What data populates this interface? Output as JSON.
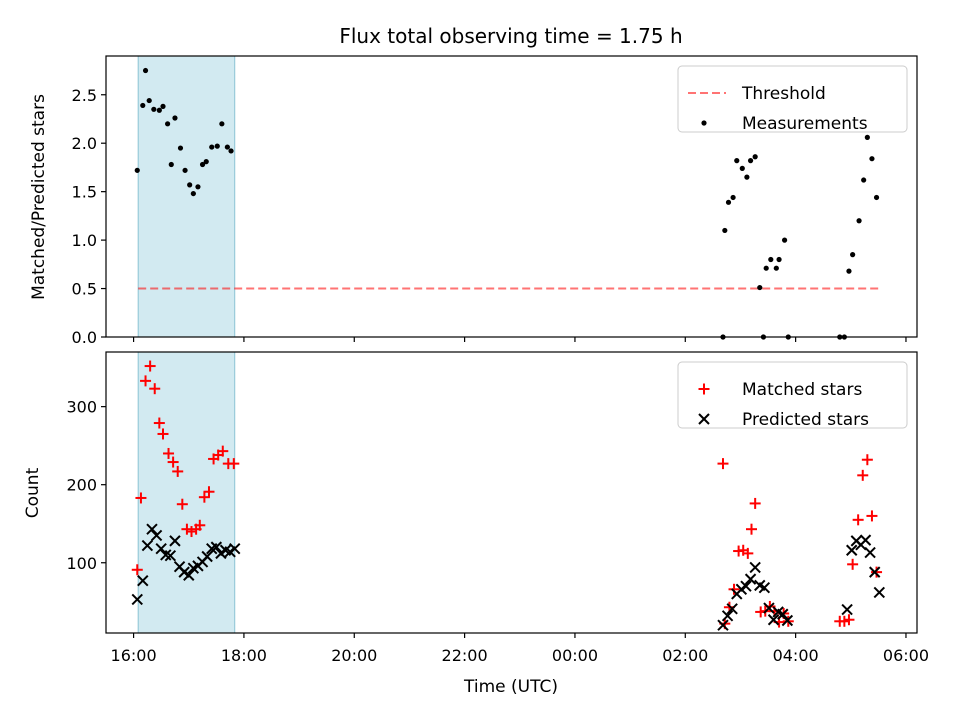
{
  "figure_title": "Flux total observing time = 1.75 h",
  "colors": {
    "highlight": "#add8e6",
    "threshold": "#ff0000",
    "measurements": "#000000",
    "matched": "#ff0000",
    "predicted": "#000000"
  },
  "chart_data": [
    {
      "type": "scatter",
      "ylabel": "Matched/Predicted stars",
      "ylim": [
        0,
        2.9
      ],
      "y_ticks": [
        "0.0",
        "0.5",
        "1.0",
        "1.5",
        "2.0",
        "2.5"
      ],
      "grid": false,
      "legend": "top-right",
      "highlight_span": [
        "16:05",
        "17:50"
      ],
      "threshold": {
        "name": "Threshold",
        "value": 0.5,
        "x_range": [
          "16:05",
          "05:30"
        ]
      },
      "series": [
        {
          "name": "Measurements",
          "marker": "dot",
          "points": [
            [
              "16:04",
              1.72
            ],
            [
              "16:10",
              2.39
            ],
            [
              "16:13",
              2.75
            ],
            [
              "16:17",
              2.44
            ],
            [
              "16:22",
              2.35
            ],
            [
              "16:28",
              2.34
            ],
            [
              "16:32",
              2.38
            ],
            [
              "16:37",
              2.2
            ],
            [
              "16:41",
              1.78
            ],
            [
              "16:45",
              2.26
            ],
            [
              "16:51",
              1.95
            ],
            [
              "16:56",
              1.72
            ],
            [
              "17:01",
              1.57
            ],
            [
              "17:05",
              1.48
            ],
            [
              "17:10",
              1.55
            ],
            [
              "17:15",
              1.78
            ],
            [
              "17:19",
              1.81
            ],
            [
              "17:25",
              1.96
            ],
            [
              "17:31",
              1.97
            ],
            [
              "17:36",
              2.2
            ],
            [
              "17:42",
              1.96
            ],
            [
              "17:46",
              1.92
            ],
            [
              "02:41",
              0.0
            ],
            [
              "02:43",
              1.1
            ],
            [
              "02:47",
              1.39
            ],
            [
              "02:52",
              1.44
            ],
            [
              "02:56",
              1.82
            ],
            [
              "03:02",
              1.74
            ],
            [
              "03:07",
              1.65
            ],
            [
              "03:11",
              1.82
            ],
            [
              "03:16",
              1.86
            ],
            [
              "03:21",
              0.51
            ],
            [
              "03:25",
              0.0
            ],
            [
              "03:28",
              0.71
            ],
            [
              "03:33",
              0.8
            ],
            [
              "03:39",
              0.71
            ],
            [
              "03:42",
              0.8
            ],
            [
              "03:48",
              1.0
            ],
            [
              "03:52",
              0.0
            ],
            [
              "04:48",
              0.0
            ],
            [
              "04:53",
              0.0
            ],
            [
              "04:58",
              0.68
            ],
            [
              "05:02",
              0.85
            ],
            [
              "05:09",
              1.2
            ],
            [
              "05:14",
              1.62
            ],
            [
              "05:18",
              2.06
            ],
            [
              "05:23",
              1.84
            ],
            [
              "05:28",
              1.44
            ]
          ]
        }
      ]
    },
    {
      "type": "scatter",
      "xlabel": "Time (UTC)",
      "ylabel": "Count",
      "ylim": [
        10,
        370
      ],
      "y_ticks": [
        "100",
        "200",
        "300"
      ],
      "x_ticks": [
        "16:00",
        "18:00",
        "20:00",
        "22:00",
        "00:00",
        "02:00",
        "04:00",
        "06:00"
      ],
      "grid": false,
      "legend": "top-right",
      "highlight_span": [
        "16:05",
        "17:50"
      ],
      "series": [
        {
          "name": "Matched stars",
          "marker": "plus",
          "points": [
            [
              "16:04",
              91
            ],
            [
              "16:08",
              183
            ],
            [
              "16:13",
              333
            ],
            [
              "16:18",
              352
            ],
            [
              "16:23",
              323
            ],
            [
              "16:28",
              279
            ],
            [
              "16:32",
              265
            ],
            [
              "16:38",
              240
            ],
            [
              "16:43",
              229
            ],
            [
              "16:48",
              217
            ],
            [
              "16:53",
              175
            ],
            [
              "16:58",
              143
            ],
            [
              "17:03",
              140
            ],
            [
              "17:08",
              143
            ],
            [
              "17:12",
              148
            ],
            [
              "17:17",
              184
            ],
            [
              "17:22",
              191
            ],
            [
              "17:27",
              233
            ],
            [
              "17:32",
              238
            ],
            [
              "17:37",
              243
            ],
            [
              "17:43",
              227
            ],
            [
              "17:49",
              227
            ],
            [
              "02:41",
              227
            ],
            [
              "02:43",
              22
            ],
            [
              "02:48",
              43
            ],
            [
              "02:53",
              66
            ],
            [
              "02:58",
              115
            ],
            [
              "03:03",
              116
            ],
            [
              "03:08",
              112
            ],
            [
              "03:12",
              143
            ],
            [
              "03:16",
              176
            ],
            [
              "03:22",
              37
            ],
            [
              "03:27",
              38
            ],
            [
              "03:32",
              44
            ],
            [
              "03:37",
              38
            ],
            [
              "03:42",
              24
            ],
            [
              "03:47",
              35
            ],
            [
              "03:52",
              25
            ],
            [
              "04:48",
              25
            ],
            [
              "04:53",
              25
            ],
            [
              "04:58",
              27
            ],
            [
              "05:02",
              98
            ],
            [
              "05:08",
              155
            ],
            [
              "05:13",
              212
            ],
            [
              "05:18",
              232
            ],
            [
              "05:23",
              160
            ],
            [
              "05:28",
              88
            ]
          ]
        },
        {
          "name": "Predicted stars",
          "marker": "x",
          "points": [
            [
              "16:04",
              53
            ],
            [
              "16:10",
              77
            ],
            [
              "16:15",
              122
            ],
            [
              "16:20",
              143
            ],
            [
              "16:25",
              135
            ],
            [
              "16:30",
              118
            ],
            [
              "16:35",
              110
            ],
            [
              "16:40",
              109
            ],
            [
              "16:45",
              128
            ],
            [
              "16:50",
              95
            ],
            [
              "16:55",
              88
            ],
            [
              "17:00",
              84
            ],
            [
              "17:05",
              93
            ],
            [
              "17:10",
              96
            ],
            [
              "17:15",
              101
            ],
            [
              "17:20",
              108
            ],
            [
              "17:25",
              118
            ],
            [
              "17:30",
              120
            ],
            [
              "17:35",
              112
            ],
            [
              "17:40",
              116
            ],
            [
              "17:45",
              114
            ],
            [
              "17:50",
              118
            ],
            [
              "02:41",
              20
            ],
            [
              "02:46",
              32
            ],
            [
              "02:51",
              41
            ],
            [
              "02:56",
              60
            ],
            [
              "03:01",
              66
            ],
            [
              "03:06",
              70
            ],
            [
              "03:11",
              79
            ],
            [
              "03:16",
              94
            ],
            [
              "03:21",
              71
            ],
            [
              "03:26",
              68
            ],
            [
              "03:31",
              42
            ],
            [
              "03:36",
              27
            ],
            [
              "03:41",
              37
            ],
            [
              "03:46",
              34
            ],
            [
              "03:51",
              26
            ],
            [
              "04:56",
              40
            ],
            [
              "05:01",
              116
            ],
            [
              "05:06",
              128
            ],
            [
              "05:11",
              123
            ],
            [
              "05:16",
              129
            ],
            [
              "05:21",
              113
            ],
            [
              "05:26",
              88
            ],
            [
              "05:31",
              62
            ]
          ]
        }
      ]
    }
  ]
}
